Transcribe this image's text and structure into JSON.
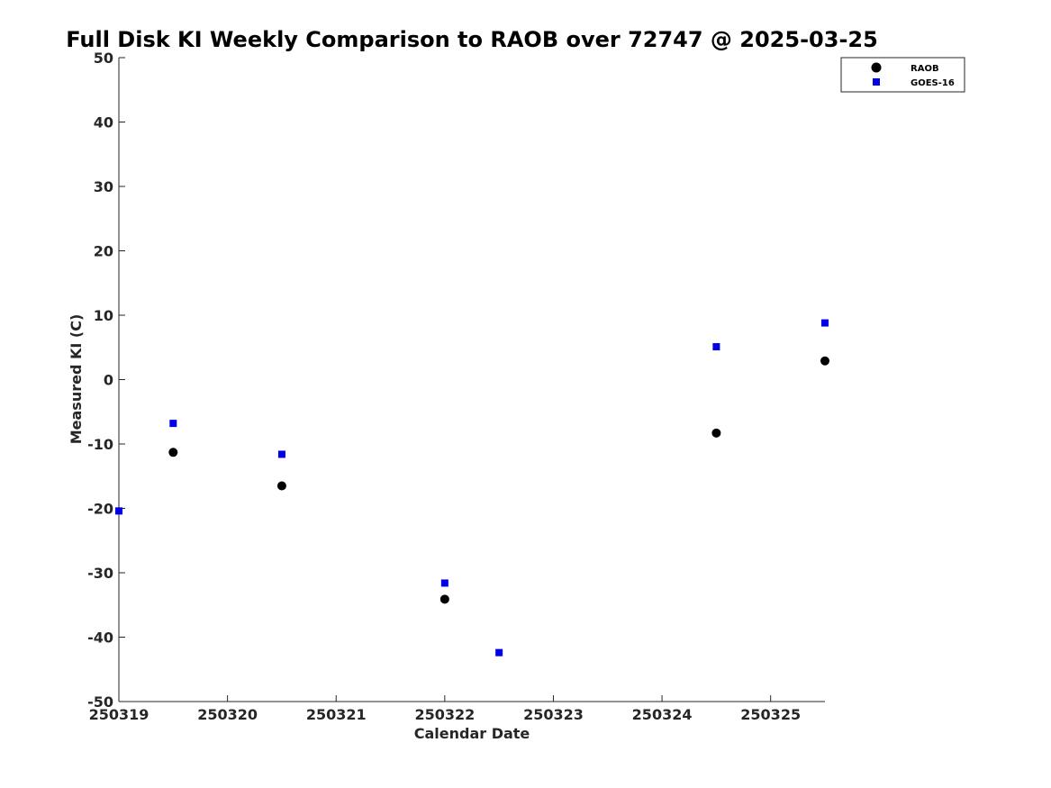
{
  "chart_data": {
    "type": "scatter",
    "title": "Full Disk KI Weekly Comparison to RAOB over 72747 @ 2025-03-25",
    "xlabel": "Calendar Date",
    "ylabel": "Measured KI (C)",
    "xlim": [
      250319,
      250325.5
    ],
    "ylim": [
      -50,
      50
    ],
    "x_ticks": [
      250319,
      250320,
      250321,
      250322,
      250323,
      250324,
      250325
    ],
    "x_tick_labels": [
      "250319",
      "250320",
      "250321",
      "250322",
      "250323",
      "250324",
      "250325"
    ],
    "y_ticks": [
      50,
      40,
      30,
      20,
      10,
      0,
      -10,
      -20,
      -30,
      -40,
      -50
    ],
    "y_tick_labels": [
      "50",
      "40",
      "30",
      "20",
      "10",
      "0",
      "-10",
      "-20",
      "-30",
      "-40",
      "-50"
    ],
    "grid": false,
    "legend_position": "top-right",
    "series": [
      {
        "name": "RAOB",
        "marker": "circle",
        "color": "#000000",
        "points": [
          {
            "x": 250319.5,
            "y": -11.3
          },
          {
            "x": 250320.5,
            "y": -16.5
          },
          {
            "x": 250322.0,
            "y": -34.1
          },
          {
            "x": 250324.5,
            "y": -8.3
          },
          {
            "x": 250325.5,
            "y": 2.9
          }
        ]
      },
      {
        "name": "GOES-16",
        "marker": "square",
        "color": "#0000e6",
        "points": [
          {
            "x": 250319.0,
            "y": -20.4
          },
          {
            "x": 250319.5,
            "y": -6.8
          },
          {
            "x": 250320.5,
            "y": -11.6
          },
          {
            "x": 250322.0,
            "y": -31.6
          },
          {
            "x": 250322.5,
            "y": -42.4
          },
          {
            "x": 250324.5,
            "y": 5.1
          },
          {
            "x": 250325.5,
            "y": 8.8
          }
        ]
      }
    ]
  }
}
